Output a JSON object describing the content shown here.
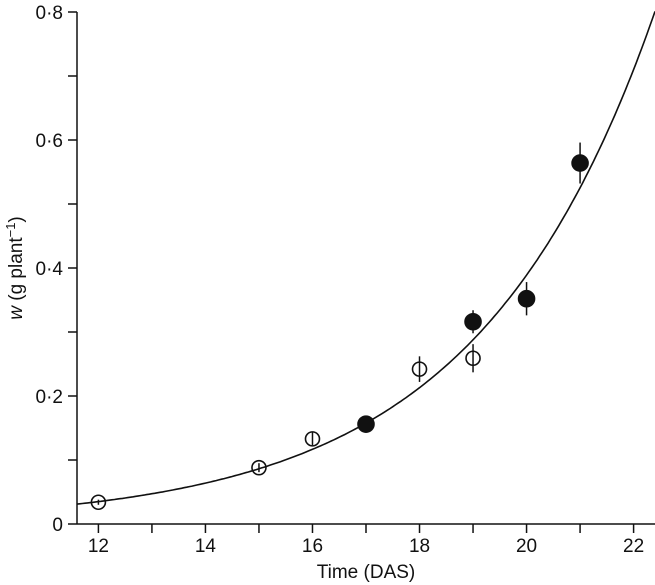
{
  "chart_data": {
    "type": "scatter",
    "xlabel": "Time (DAS)",
    "ylabel_var": "w",
    "ylabel_unit": " (g plant",
    "ylabel_exp": "−1",
    "ylabel_close": ")",
    "xlim": [
      11.6,
      22.4
    ],
    "ylim": [
      0,
      0.8
    ],
    "xticks": [
      12,
      14,
      16,
      18,
      20,
      22
    ],
    "xtick_labels": [
      "12",
      "14",
      "16",
      "18",
      "20",
      "22"
    ],
    "xminor": [
      13,
      15,
      17,
      19,
      21
    ],
    "yticks": [
      0,
      0.2,
      0.4,
      0.6,
      0.8
    ],
    "ytick_labels": [
      "0",
      "0·2",
      "0·4",
      "0·6",
      "0·8"
    ],
    "yminor": [
      0.1,
      0.3,
      0.5,
      0.7
    ],
    "grid": false,
    "series": [
      {
        "marker": "open-circle",
        "points": [
          {
            "x": 12,
            "y": 0.034,
            "err": 0.004
          },
          {
            "x": 15,
            "y": 0.088,
            "err": 0.007
          },
          {
            "x": 16,
            "y": 0.133,
            "err": 0.01
          },
          {
            "x": 18,
            "y": 0.242,
            "err": 0.02
          },
          {
            "x": 19,
            "y": 0.259,
            "err": 0.022
          }
        ]
      },
      {
        "marker": "filled-circle",
        "points": [
          {
            "x": 17,
            "y": 0.156,
            "err": 0.008
          },
          {
            "x": 19,
            "y": 0.316,
            "err": 0.018
          },
          {
            "x": 20,
            "y": 0.352,
            "err": 0.026
          },
          {
            "x": 21,
            "y": 0.564,
            "err": 0.032
          }
        ]
      }
    ],
    "fit_curve": {
      "type": "exponential",
      "a": 0.035,
      "b": 0.301,
      "t0": 12
    }
  }
}
